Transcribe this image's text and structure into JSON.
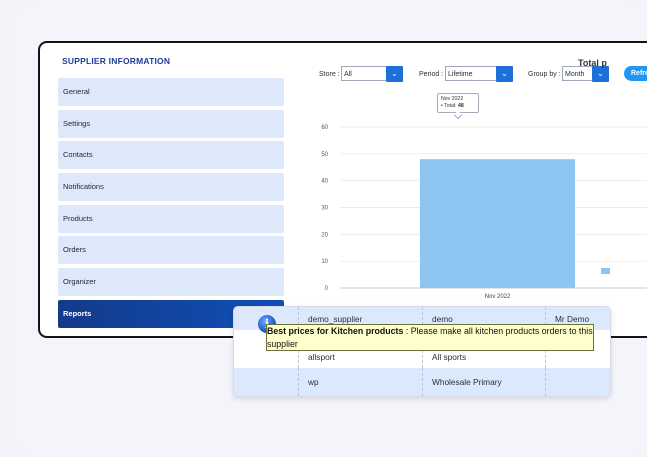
{
  "section_title": "SUPPLIER INFORMATION",
  "menu": [
    {
      "label": "General"
    },
    {
      "label": "Settings"
    },
    {
      "label": "Contacts"
    },
    {
      "label": "Notifications"
    },
    {
      "label": "Products"
    },
    {
      "label": "Orders"
    },
    {
      "label": "Organizer"
    },
    {
      "label": "Reports",
      "active": true
    }
  ],
  "filters": {
    "store_label": "Store :",
    "store_value": "All",
    "period_label": "Period :",
    "period_value": "Lifetime",
    "group_label": "Group by :",
    "group_value": "Month",
    "refresh_label": "Refre"
  },
  "chart_title": "Total p",
  "chart_data": {
    "type": "bar",
    "title": "Total p",
    "categories": [
      "Nov 2022"
    ],
    "values": [
      48
    ],
    "yticks": [
      0,
      10,
      20,
      30,
      40,
      50,
      60
    ],
    "ylim": [
      0,
      60
    ],
    "grid": true,
    "tooltip": {
      "header": "Nov 2022",
      "label": "• Total:",
      "value": "48"
    },
    "bar_color": "#8ec5f0"
  },
  "table": {
    "rows": [
      [
        "",
        "demo_supplier",
        "demo",
        "Mr Demo"
      ],
      [
        "",
        "allsport",
        "All sports",
        ""
      ],
      [
        "",
        "wp",
        "Wholesale Primary",
        ""
      ]
    ]
  },
  "notice": {
    "title": "Best prices for Kitchen products",
    "text": " : Please make all kitchen products orders to this supplier"
  },
  "colors": {
    "accent": "#1e6fd8",
    "menu_bg": "#dde9fb",
    "menu_active": "#143a8a",
    "notice_bg": "#ffffcc"
  }
}
